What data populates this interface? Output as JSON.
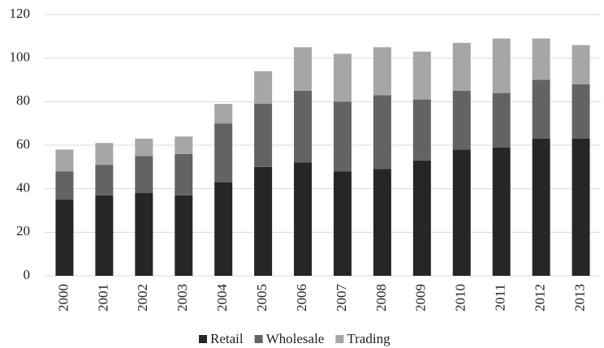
{
  "chart_data": {
    "type": "stacked_bar",
    "categories": [
      "2000",
      "2001",
      "2002",
      "2003",
      "2004",
      "2005",
      "2006",
      "2007",
      "2008",
      "2009",
      "2010",
      "2011",
      "2012",
      "2013"
    ],
    "series": [
      {
        "name": "Retail",
        "color": "#262626",
        "values": [
          35,
          37,
          38,
          37,
          43,
          50,
          52,
          48,
          49,
          53,
          58,
          59,
          63,
          63
        ]
      },
      {
        "name": "Wholesale",
        "color": "#636363",
        "values": [
          13,
          14,
          17,
          19,
          27,
          29,
          33,
          32,
          34,
          28,
          27,
          25,
          27,
          25
        ]
      },
      {
        "name": "Trading",
        "color": "#a6a6a6",
        "values": [
          10,
          10,
          8,
          8,
          9,
          15,
          20,
          22,
          22,
          22,
          22,
          25,
          19,
          18
        ]
      }
    ],
    "ylim": [
      0,
      120
    ],
    "yticks": [
      0,
      20,
      40,
      60,
      80,
      100,
      120
    ],
    "grid": true,
    "legend": "bottom"
  }
}
